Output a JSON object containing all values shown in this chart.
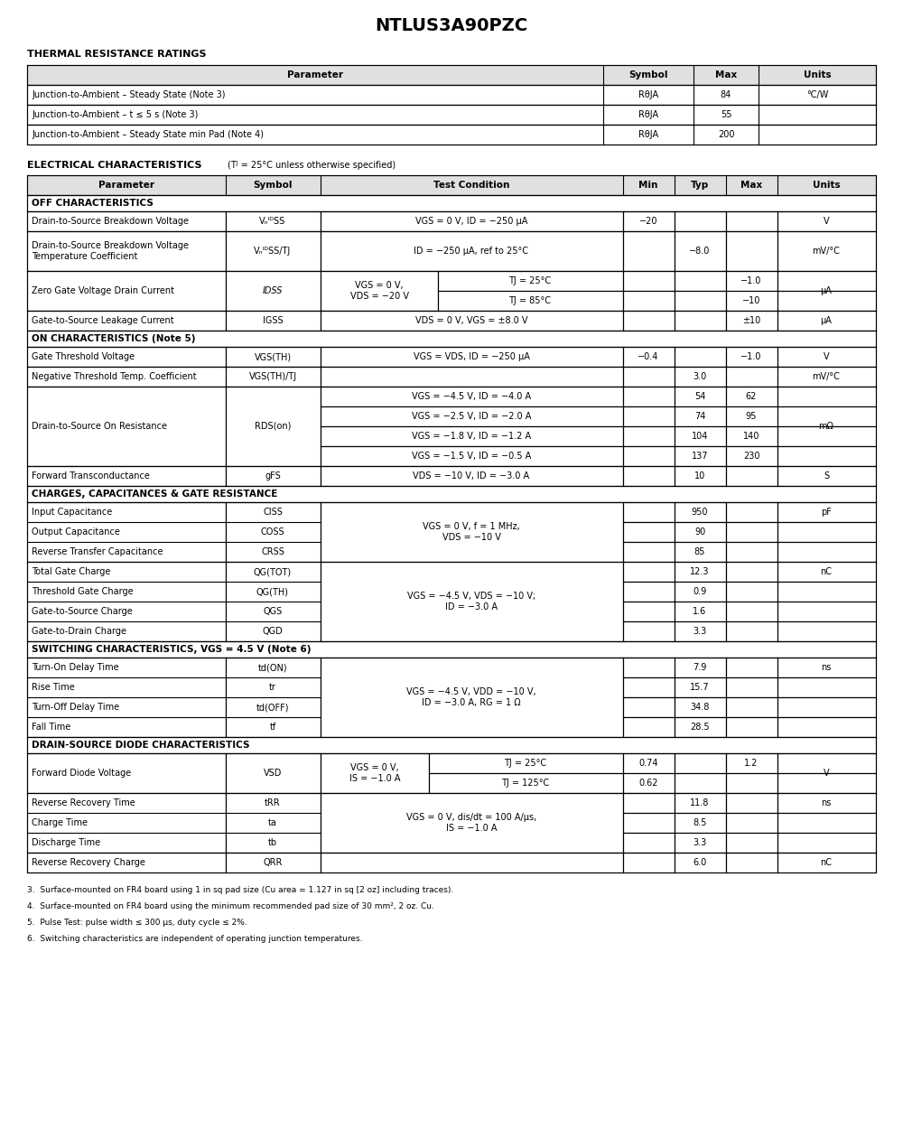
{
  "title": "NTLUS3A90PZC",
  "background": "#ffffff",
  "thermal_title": "THERMAL RESISTANCE RATINGS",
  "elec_title": "ELECTRICAL CHARACTERISTICS",
  "elec_subtitle": "(Tᴶ = 25°C unless otherwise specified)",
  "section_off": "OFF CHARACTERISTICS",
  "section_on": "ON CHARACTERISTICS (Note 5)",
  "section_cap": "CHARGES, CAPACITANCES & GATE RESISTANCE",
  "section_sw": "SWITCHING CHARACTERISTICS, VGS = 4.5 V (Note 6)",
  "section_diode": "DRAIN-SOURCE DIODE CHARACTERISTICS",
  "notes": [
    "3.  Surface-mounted on FR4 board using 1 in sq pad size (Cu area = 1.127 in sq [2 oz] including traces).",
    "4.  Surface-mounted on FR4 board using the minimum recommended pad size of 30 mm², 2 oz. Cu.",
    "5.  Pulse Test: pulse width ≤ 300 μs, duty cycle ≤ 2%.",
    "6.  Switching characteristics are independent of operating junction temperatures."
  ]
}
